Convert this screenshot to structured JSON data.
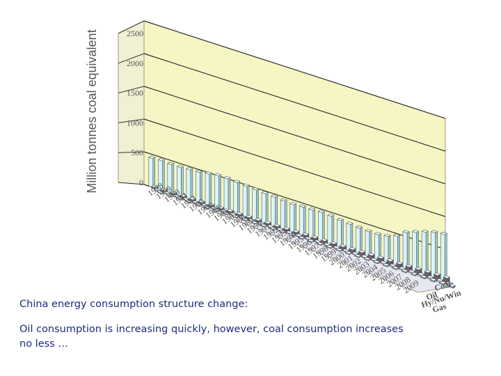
{
  "chart_data": {
    "type": "bar",
    "ylabel": "Million tonnes coal equivalent",
    "ylim": [
      0,
      2500
    ],
    "yticks": [
      "0",
      "500",
      "1000",
      "1500",
      "2000",
      "2500"
    ],
    "categories": [
      "1978",
      "1979",
      "1980",
      "1981",
      "1982",
      "1983",
      "1984",
      "1985",
      "1986",
      "1987",
      "1988",
      "1989",
      "1990",
      "1991",
      "1992",
      "1993",
      "1994",
      "1995",
      "1996",
      "1997",
      "1998",
      "1999",
      "2000",
      "2001",
      "2002",
      "2003",
      "2004",
      "2005",
      "2006",
      "2007",
      "2008",
      "2009"
    ],
    "series": [
      {
        "name": "Coal",
        "values": [
          440,
          450,
          440,
          440,
          450,
          460,
          480,
          500,
          500,
          490,
          480,
          470,
          460,
          450,
          440,
          430,
          440,
          440,
          450,
          440,
          420,
          410,
          400,
          390,
          390,
          410,
          460,
          560,
          610,
          660,
          700,
          720
        ]
      },
      {
        "name": "Oil",
        "values": [
          25,
          25,
          25,
          26,
          27,
          28,
          29,
          30,
          31,
          32,
          33,
          34,
          35,
          36,
          38,
          40,
          42,
          44,
          46,
          48,
          50,
          52,
          55,
          58,
          60,
          63,
          66,
          70,
          74,
          78,
          82,
          86
        ]
      },
      {
        "name": "Gas",
        "values": [
          8,
          8,
          8,
          8,
          8,
          9,
          9,
          9,
          9,
          10,
          10,
          10,
          10,
          11,
          11,
          11,
          12,
          12,
          12,
          13,
          13,
          14,
          15,
          16,
          17,
          18,
          19,
          20,
          22,
          24,
          26,
          28
        ]
      },
      {
        "name": "Hy/Nu/Win",
        "values": [
          5,
          5,
          5,
          6,
          6,
          6,
          6,
          7,
          7,
          7,
          7,
          8,
          8,
          8,
          8,
          9,
          9,
          9,
          10,
          10,
          10,
          11,
          11,
          12,
          12,
          13,
          14,
          15,
          16,
          17,
          18,
          19
        ]
      }
    ]
  },
  "caption": {
    "line1": "China energy consumption structure change:",
    "line2": "Oil consumption is increasing quickly, however, coal consumption increases no less …"
  },
  "colors": {
    "wall": "#f6f6c4",
    "coal_bar": "#def3f6",
    "coal_bar_side": "#9ccbd0",
    "oil_bar": "#7a5a66",
    "gas_bar": "#ddb8c6",
    "hy_bar": "#9aa6e6",
    "floor": "#e7e7f2",
    "caption_text": "#1f2b7a"
  }
}
